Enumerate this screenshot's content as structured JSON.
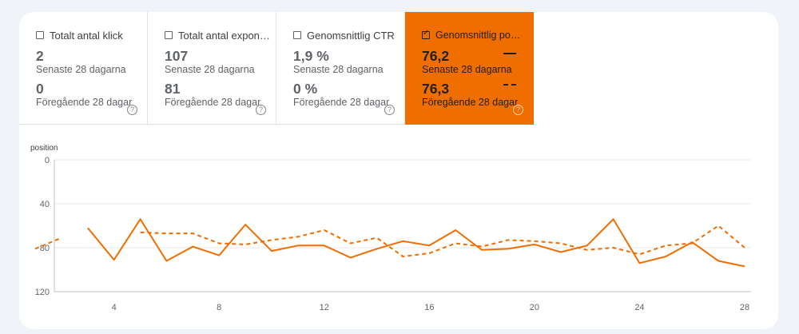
{
  "metrics": [
    {
      "title": "Totalt antal klick",
      "checked": false,
      "current": "2",
      "current_label": "Senaste 28 dagarna",
      "previous": "0",
      "previous_label": "Föregående 28 dagar",
      "help": "?"
    },
    {
      "title": "Totalt antal exponeringar",
      "checked": false,
      "current": "107",
      "current_label": "Senaste 28 dagarna",
      "previous": "81",
      "previous_label": "Föregående 28 dagar",
      "help": "?"
    },
    {
      "title": "Genomsnittlig CTR",
      "checked": false,
      "current": "1,9 %",
      "current_label": "Senaste 28 dagarna",
      "previous": "0 %",
      "previous_label": "Föregående 28 dagar",
      "help": "?"
    },
    {
      "title": "Genomsnittlig position",
      "checked": true,
      "current": "76,2",
      "current_label": "Senaste 28 dagarna",
      "previous": "76,3",
      "previous_label": "Föregående 28 dagar",
      "help": "?"
    }
  ],
  "icons": {
    "checkbox_checked": "check-icon",
    "help": "help-circle-icon"
  },
  "colors": {
    "accent": "#f06d00",
    "background": "#f0f4f9",
    "card": "#ffffff"
  },
  "chart_data": {
    "type": "line",
    "ylabel": "position",
    "y_inverted": true,
    "ylim": [
      0,
      120
    ],
    "xlim": [
      1,
      28
    ],
    "y_ticks": [
      0,
      40,
      80,
      120
    ],
    "x_ticks": [
      4,
      8,
      12,
      16,
      20,
      24,
      28
    ],
    "grid": true,
    "series": [
      {
        "style": "solid",
        "points": [
          [
            3,
            62
          ],
          [
            4,
            91
          ],
          [
            5,
            54
          ],
          [
            6,
            92
          ],
          [
            7,
            79
          ],
          [
            8,
            87
          ],
          [
            9,
            59
          ],
          [
            10,
            83
          ],
          [
            11,
            78
          ],
          [
            12,
            78
          ],
          [
            13,
            89
          ],
          [
            14,
            81
          ],
          [
            15,
            74
          ],
          [
            16,
            78
          ],
          [
            17,
            64
          ],
          [
            18,
            82
          ],
          [
            19,
            81
          ],
          [
            20,
            77
          ],
          [
            21,
            84
          ],
          [
            22,
            78
          ],
          [
            23,
            54
          ],
          [
            24,
            94
          ],
          [
            25,
            88
          ],
          [
            26,
            75
          ],
          [
            27,
            92
          ],
          [
            28,
            97
          ]
        ]
      },
      {
        "style": "dashed",
        "points": [
          [
            1,
            81
          ],
          [
            2,
            71
          ],
          null,
          [
            5,
            66
          ],
          [
            6,
            67
          ],
          [
            7,
            67
          ],
          [
            8,
            76
          ],
          [
            9,
            77
          ],
          [
            10,
            73
          ],
          [
            11,
            70
          ],
          [
            12,
            64
          ],
          [
            13,
            76
          ],
          [
            14,
            71
          ],
          [
            15,
            88
          ],
          [
            16,
            85
          ],
          [
            17,
            76
          ],
          [
            18,
            79
          ],
          [
            19,
            73
          ],
          [
            20,
            74
          ],
          [
            21,
            76
          ],
          [
            22,
            82
          ],
          [
            23,
            80
          ],
          [
            24,
            86
          ],
          [
            25,
            78
          ],
          [
            26,
            76
          ],
          [
            27,
            60
          ],
          [
            28,
            80
          ]
        ]
      }
    ]
  }
}
